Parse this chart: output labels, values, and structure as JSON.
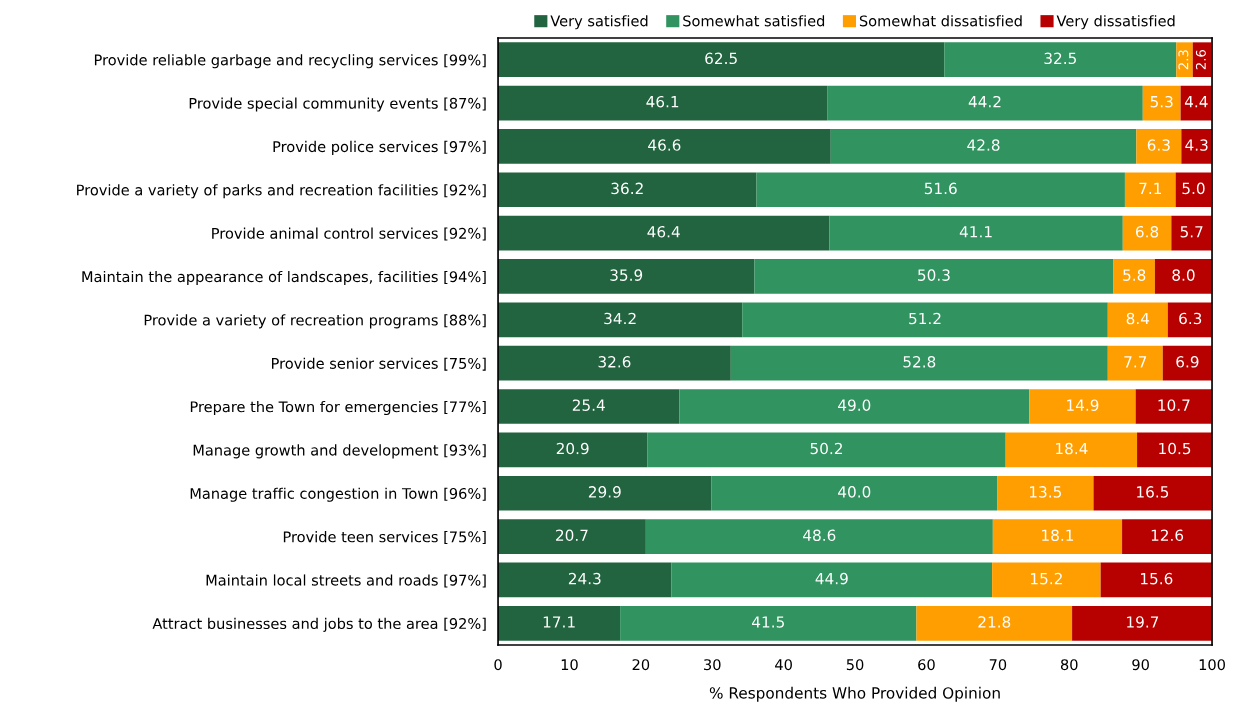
{
  "chart_data": {
    "type": "bar",
    "orientation": "horizontal",
    "stacked": true,
    "legend": "top",
    "grid": false,
    "xlabel": "% Respondents Who Provided Opinion",
    "categories": [
      "Provide reliable garbage and recycling services [99%]",
      "Provide special community events [87%]",
      "Provide police services [97%]",
      "Provide a variety of parks and recreation facilities [92%]",
      "Provide animal control services [92%]",
      "Maintain the appearance of landscapes, facilities [94%]",
      "Provide a variety of recreation programs [88%]",
      "Provide senior services [75%]",
      "Prepare the Town for emergencies [77%]",
      "Manage growth and development [93%]",
      "Manage traffic congestion in Town [96%]",
      "Provide teen services [75%]",
      "Maintain local streets and roads [97%]",
      "Attract businesses and jobs to the area [92%]"
    ],
    "series": [
      {
        "name": "Very satisfied",
        "color": "#22643f",
        "values": [
          62.5,
          46.1,
          46.6,
          36.2,
          46.4,
          35.9,
          34.2,
          32.6,
          25.4,
          20.9,
          29.9,
          20.7,
          24.3,
          17.1
        ],
        "value_labels": [
          "62.5",
          "46.1",
          "46.6",
          "36.2",
          "46.4",
          "35.9",
          "34.2",
          "32.6",
          "25.4",
          "20.9",
          "29.9",
          "20.7",
          "24.3",
          "17.1"
        ]
      },
      {
        "name": "Somewhat satisfied",
        "color": "#31935f",
        "values": [
          32.5,
          44.2,
          42.8,
          51.6,
          41.1,
          50.3,
          51.2,
          52.8,
          49.0,
          50.2,
          40.0,
          48.6,
          44.9,
          41.5
        ],
        "value_labels": [
          "32.5",
          "44.2",
          "42.8",
          "51.6",
          "41.1",
          "50.3",
          "51.2",
          "52.8",
          "49.0",
          "50.2",
          "40.0",
          "48.6",
          "44.9",
          "41.5"
        ]
      },
      {
        "name": "Somewhat dissatisfied",
        "color": "#ff9e00",
        "values": [
          2.3,
          5.3,
          6.3,
          7.1,
          6.8,
          5.8,
          8.4,
          7.7,
          14.9,
          18.4,
          13.5,
          18.1,
          15.2,
          21.8
        ],
        "value_labels": [
          "2.3",
          "5.3",
          "6.3",
          "7.1",
          "6.8",
          "5.8",
          "8.4",
          "7.7",
          "14.9",
          "18.4",
          "13.5",
          "18.1",
          "15.2",
          "21.8"
        ]
      },
      {
        "name": "Very dissatisfied",
        "color": "#b70000",
        "values": [
          2.6,
          4.4,
          4.3,
          5.0,
          5.7,
          8.0,
          6.3,
          6.9,
          10.7,
          10.5,
          16.5,
          12.6,
          15.6,
          19.7
        ],
        "value_labels": [
          "2.6",
          "4.4",
          "4.3",
          "5.0",
          "5.7",
          "8.0",
          "6.3",
          "6.9",
          "10.7",
          "10.5",
          "16.5",
          "12.6",
          "15.6",
          "19.7"
        ]
      }
    ],
    "xlim": [
      0,
      100
    ],
    "xticks": [
      0,
      10,
      20,
      30,
      40,
      50,
      60,
      70,
      80,
      90,
      100
    ]
  }
}
